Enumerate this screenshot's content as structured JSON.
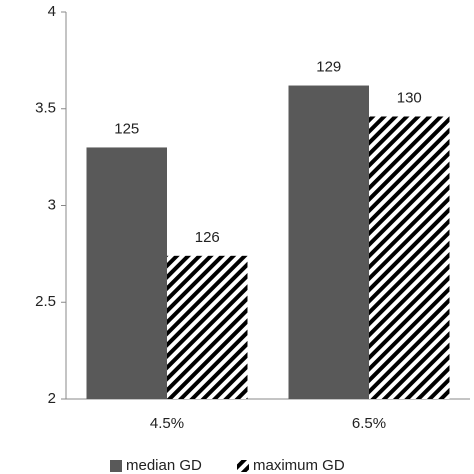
{
  "chart_data": {
    "type": "bar",
    "categories": [
      "4.5%",
      "6.5%"
    ],
    "series": [
      {
        "name": "median GD",
        "color": "#595959",
        "fill": "solid",
        "values": [
          3.3,
          3.62
        ],
        "data_labels": [
          "125",
          "129"
        ]
      },
      {
        "name": "maximum GD",
        "color": "#000000",
        "fill": "hatch",
        "values": [
          2.74,
          3.46
        ],
        "data_labels": [
          "126",
          "130"
        ]
      }
    ],
    "ylim": [
      2,
      4
    ],
    "yticks": [
      2,
      2.5,
      3,
      3.5,
      4
    ],
    "grid": false,
    "legend": "bottom"
  }
}
